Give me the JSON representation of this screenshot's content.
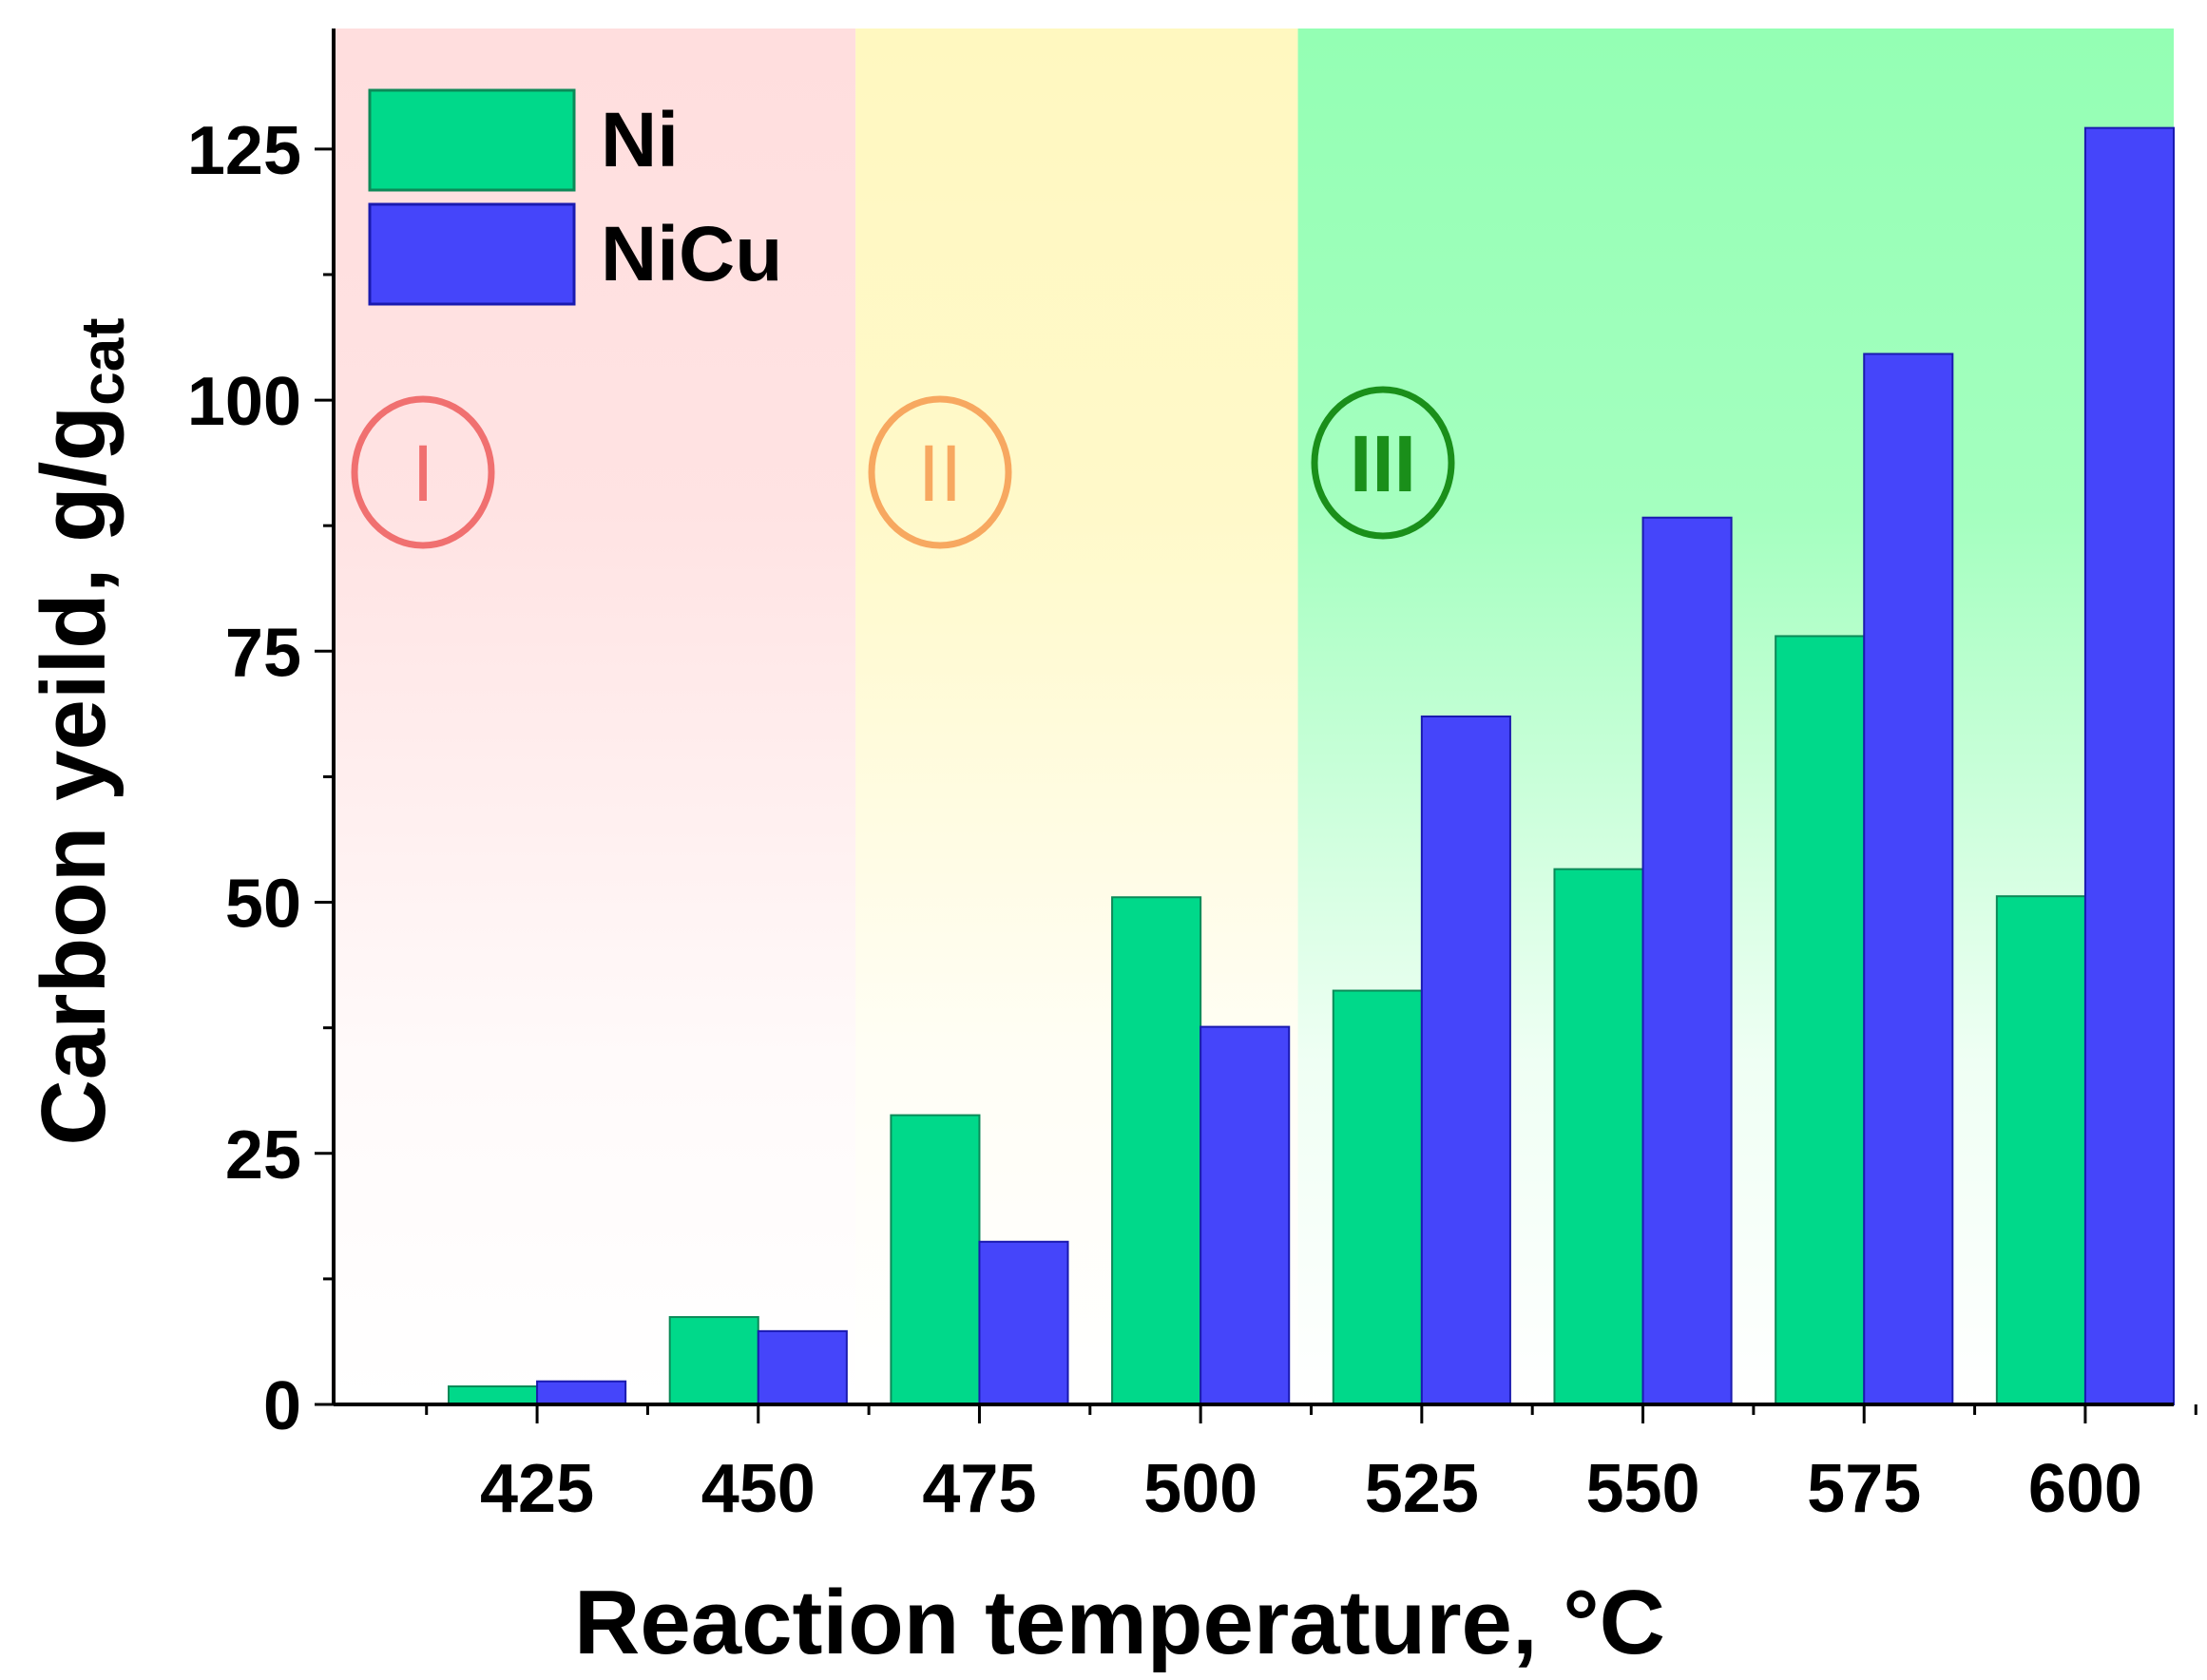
{
  "chart_data": {
    "type": "bar",
    "title": "",
    "xlabel": "Reaction temperature, °C",
    "ylabel": {
      "main": "Carbon yeild, g/g",
      "subscript": "cat"
    },
    "categories": [
      "425",
      "450",
      "475",
      "500",
      "525",
      "550",
      "575",
      "600"
    ],
    "series": [
      {
        "name": "Ni",
        "color": "#00d98a",
        "values": [
          1.8,
          8.7,
          28.8,
          50.5,
          41.2,
          53.3,
          76.5,
          50.6
        ]
      },
      {
        "name": "NiCu",
        "color": "#4545fa",
        "values": [
          2.3,
          7.3,
          16.2,
          37.6,
          68.5,
          88.3,
          104.6,
          127.1
        ]
      }
    ],
    "ylim": [
      0,
      137
    ],
    "yticks": [
      0,
      25,
      50,
      75,
      100,
      125
    ],
    "legend": "top-left",
    "regions": [
      {
        "label": "I",
        "color": "#f07070",
        "bg": "#ffdede",
        "x_from": 402,
        "x_to": 461
      },
      {
        "label": "II",
        "color": "#f7a860",
        "bg": "#fff8c0",
        "x_from": 461,
        "x_to": 511
      },
      {
        "label": "III",
        "color": "#1a8f1a",
        "bg": "#94ffb4",
        "x_from": 511,
        "x_to": 610
      }
    ]
  }
}
